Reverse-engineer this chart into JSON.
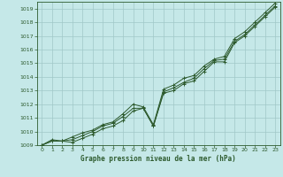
{
  "xlabel": "Graphe pression niveau de la mer (hPa)",
  "bg_color": "#c5e8e8",
  "grid_color": "#a0c8c8",
  "line_color": "#2d5a2d",
  "ylim": [
    1009,
    1019.5
  ],
  "xlim": [
    -0.5,
    23.5
  ],
  "yticks": [
    1009,
    1010,
    1011,
    1012,
    1013,
    1014,
    1015,
    1016,
    1017,
    1018,
    1019
  ],
  "xticks": [
    0,
    1,
    2,
    3,
    4,
    5,
    6,
    7,
    8,
    9,
    10,
    11,
    12,
    13,
    14,
    15,
    16,
    17,
    18,
    19,
    20,
    21,
    22,
    23
  ],
  "series": [
    [
      1009.0,
      1009.3,
      1009.3,
      1009.2,
      1009.5,
      1009.8,
      1010.2,
      1010.4,
      1010.8,
      1011.5,
      1011.7,
      1010.4,
      1012.8,
      1013.0,
      1013.5,
      1013.7,
      1014.4,
      1015.1,
      1015.1,
      1016.5,
      1017.0,
      1017.7,
      1018.4,
      1019.1
    ],
    [
      1009.0,
      1009.3,
      1009.3,
      1009.4,
      1009.7,
      1010.0,
      1010.4,
      1010.6,
      1011.1,
      1011.7,
      1011.7,
      1010.4,
      1012.9,
      1013.2,
      1013.6,
      1013.9,
      1014.6,
      1015.2,
      1015.3,
      1016.6,
      1017.1,
      1017.8,
      1018.5,
      1019.2
    ],
    [
      1009.0,
      1009.4,
      1009.3,
      1009.6,
      1009.9,
      1010.1,
      1010.5,
      1010.7,
      1011.3,
      1012.0,
      1011.8,
      1010.5,
      1013.1,
      1013.4,
      1013.9,
      1014.1,
      1014.8,
      1015.3,
      1015.5,
      1016.8,
      1017.3,
      1018.0,
      1018.7,
      1019.4
    ]
  ]
}
